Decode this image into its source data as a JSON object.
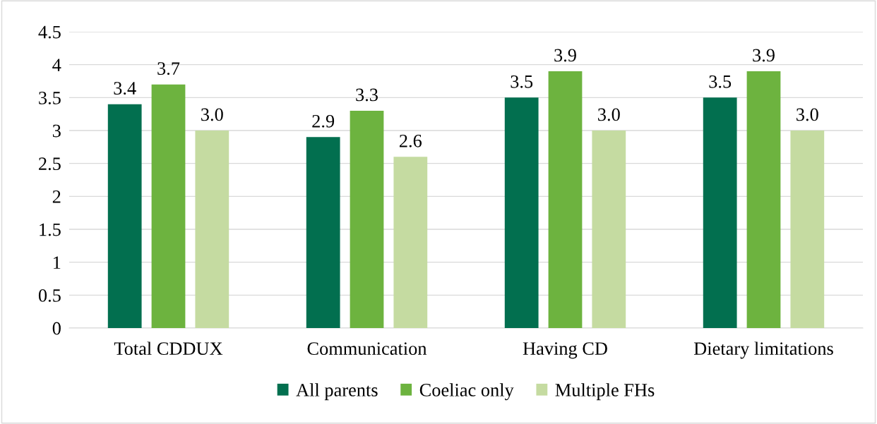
{
  "chart_data": {
    "type": "bar",
    "categories": [
      "Total CDDUX",
      "Communication",
      "Having CD",
      "Dietary limitations"
    ],
    "series": [
      {
        "name": "All parents",
        "color": "#026f4f",
        "values": [
          3.4,
          2.9,
          3.5,
          3.5
        ],
        "value_labels": [
          "3.4",
          "2.9",
          "3.5",
          "3.5"
        ]
      },
      {
        "name": "Coeliac only",
        "color": "#6db33f",
        "values": [
          3.7,
          3.3,
          3.9,
          3.9
        ],
        "value_labels": [
          "3.7",
          "3.3",
          "3.9",
          "3.9"
        ]
      },
      {
        "name": "Multiple FHs",
        "color": "#c5dba1",
        "values": [
          3.0,
          2.6,
          3.0,
          3.0
        ],
        "value_labels": [
          "3.0",
          "2.6",
          "3.0",
          "3.0"
        ]
      }
    ],
    "ylim": [
      0,
      4.5
    ],
    "yticks": [
      0,
      0.5,
      1,
      1.5,
      2,
      2.5,
      3,
      3.5,
      4,
      4.5
    ],
    "grid": "y",
    "legend": "bottom"
  }
}
